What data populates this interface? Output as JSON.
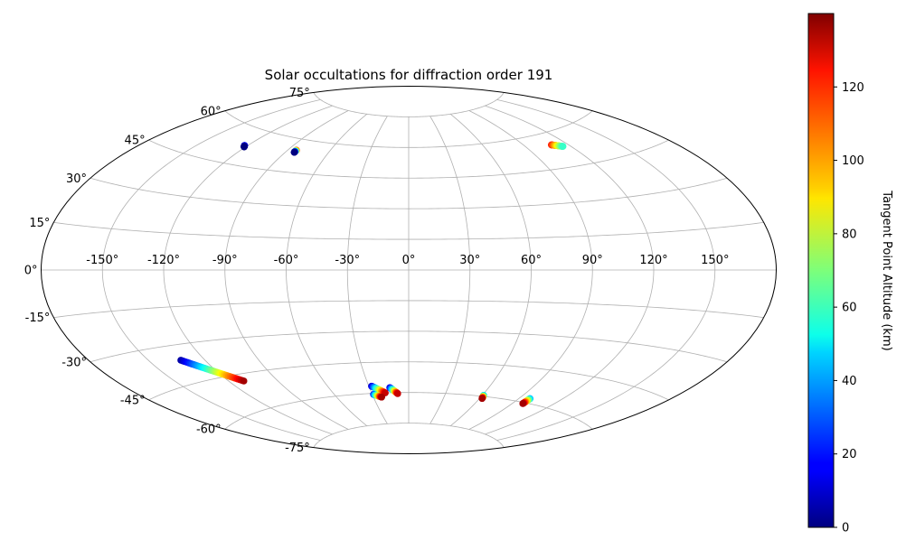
{
  "chart_data": {
    "type": "scatter",
    "projection": "aitoff",
    "title": "Solar occultations for diffraction order 191",
    "x_tick_labels": [
      "-150°",
      "-120°",
      "-90°",
      "-60°",
      "-30°",
      "0°",
      "30°",
      "60°",
      "90°",
      "120°",
      "150°"
    ],
    "x_tick_values": [
      -150,
      -120,
      -90,
      -60,
      -30,
      0,
      30,
      60,
      90,
      120,
      150
    ],
    "y_tick_labels": [
      "-75°",
      "-60°",
      "-45°",
      "-30°",
      "-15°",
      "0°",
      "15°",
      "30°",
      "45°",
      "60°",
      "75°"
    ],
    "y_tick_values": [
      -75,
      -60,
      -45,
      -30,
      -15,
      0,
      15,
      30,
      45,
      60,
      75
    ],
    "grid": true,
    "colorbar": {
      "label": "Tangent Point Altitude (km)",
      "colormap": "jet",
      "range": [
        0,
        140
      ],
      "tick_labels": [
        "0",
        "20",
        "40",
        "60",
        "80",
        "100",
        "120"
      ],
      "tick_values": [
        0,
        20,
        40,
        60,
        80,
        100,
        120
      ]
    },
    "tracks": [
      {
        "lon_start": -122,
        "lat_start": 53,
        "lon_end": -121,
        "lat_end": 52.5,
        "alt_start": 20,
        "alt_end": 0
      },
      {
        "lon_start": -84,
        "lat_start": 55,
        "lon_end": -84,
        "lat_end": 54,
        "alt_start": 120,
        "alt_end": 0
      },
      {
        "lon_start": 109,
        "lat_start": 55,
        "lon_end": 115,
        "lat_end": 53.5,
        "alt_start": 120,
        "alt_end": 60
      },
      {
        "lon_start": -133,
        "lat_start": -36,
        "lon_end": -111,
        "lat_end": -48,
        "alt_start": 5,
        "alt_end": 135
      },
      {
        "lon_start": -28,
        "lat_start": -56.5,
        "lon_end": -19,
        "lat_end": -60,
        "alt_start": 10,
        "alt_end": 130
      },
      {
        "lon_start": -29,
        "lat_start": -60.5,
        "lon_end": -23,
        "lat_end": -62,
        "alt_start": 20,
        "alt_end": 135
      },
      {
        "lon_start": -14.5,
        "lat_start": -57.5,
        "lon_end": -9,
        "lat_end": -60.5,
        "alt_start": 10,
        "alt_end": 130
      },
      {
        "lon_start": 61,
        "lat_start": -59.5,
        "lon_end": 62,
        "lat_end": -61,
        "alt_start": 40,
        "alt_end": 135
      },
      {
        "lon_start": 98,
        "lat_start": -58,
        "lon_end": 98,
        "lat_end": -60.5,
        "alt_start": 40,
        "alt_end": 135
      }
    ]
  }
}
